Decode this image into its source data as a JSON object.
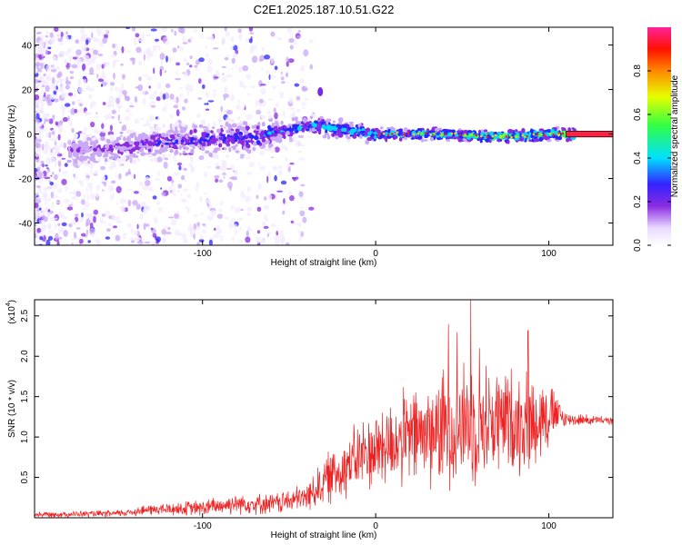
{
  "title": "C2E1.2025.187.10.51.G22",
  "colors": {
    "snr_line": "#ee2222",
    "axis": "#000000",
    "zero_bar": "#ff2244"
  },
  "chart_data": [
    {
      "type": "heatmap",
      "xlabel": "Height of straight line (km)",
      "ylabel": "Frequency (Hz)",
      "xlim": [
        -197,
        137
      ],
      "ylim": [
        -50,
        48
      ],
      "x_ticks": [
        -100,
        0,
        100
      ],
      "y_ticks": [
        -40,
        -20,
        0,
        20,
        40
      ],
      "colorbar": {
        "label": "Normalized spectral amplitude",
        "range": [
          0,
          1
        ],
        "ticks": [
          "0.0",
          "0.2",
          "0.4",
          "0.6",
          "0.8"
        ],
        "colormap": "rainbow (white→purple→blue→cyan→green→yellow→red→magenta)"
      },
      "ridge": [
        {
          "x": -190,
          "f": -8
        },
        {
          "x": -170,
          "f": -7
        },
        {
          "x": -150,
          "f": -6
        },
        {
          "x": -130,
          "f": -4
        },
        {
          "x": -110,
          "f": -3
        },
        {
          "x": -90,
          "f": -2
        },
        {
          "x": -70,
          "f": -1
        },
        {
          "x": -50,
          "f": 2
        },
        {
          "x": -35,
          "f": 4
        },
        {
          "x": -20,
          "f": 2
        },
        {
          "x": 0,
          "f": 0
        },
        {
          "x": 20,
          "f": 0
        },
        {
          "x": 40,
          "f": 0
        },
        {
          "x": 60,
          "f": -1
        },
        {
          "x": 80,
          "f": -1
        },
        {
          "x": 100,
          "f": 0
        },
        {
          "x": 110,
          "f": 0
        },
        {
          "x": 137,
          "f": 0
        }
      ]
    },
    {
      "type": "line",
      "xlabel": "Height of straight line (km)",
      "ylabel": "SNR (10 * v/v)",
      "y_multiplier": "(x10",
      "y_multiplier_exp": "4",
      "xlim": [
        -197,
        137
      ],
      "ylim": [
        0,
        2.7
      ],
      "x_ticks": [
        -100,
        0,
        100
      ],
      "y_ticks": [
        "0.5",
        "1.0",
        "1.5",
        "2.0",
        "2.5"
      ],
      "envelope": [
        {
          "x": -197,
          "mean": 0.04,
          "amp": 0.04
        },
        {
          "x": -150,
          "mean": 0.05,
          "amp": 0.05
        },
        {
          "x": -130,
          "mean": 0.1,
          "amp": 0.08
        },
        {
          "x": -100,
          "mean": 0.12,
          "amp": 0.12
        },
        {
          "x": -80,
          "mean": 0.18,
          "amp": 0.15
        },
        {
          "x": -60,
          "mean": 0.17,
          "amp": 0.15
        },
        {
          "x": -40,
          "mean": 0.25,
          "amp": 0.2
        },
        {
          "x": -30,
          "mean": 0.45,
          "amp": 0.35
        },
        {
          "x": -20,
          "mean": 0.6,
          "amp": 0.45
        },
        {
          "x": -10,
          "mean": 0.75,
          "amp": 0.5
        },
        {
          "x": 0,
          "mean": 0.85,
          "amp": 0.6
        },
        {
          "x": 20,
          "mean": 1.0,
          "amp": 0.7
        },
        {
          "x": 40,
          "mean": 1.1,
          "amp": 0.85
        },
        {
          "x": 55,
          "mean": 1.2,
          "amp": 0.9
        },
        {
          "x": 70,
          "mean": 1.2,
          "amp": 0.8
        },
        {
          "x": 90,
          "mean": 1.2,
          "amp": 0.75
        },
        {
          "x": 100,
          "mean": 1.3,
          "amp": 0.5
        },
        {
          "x": 110,
          "mean": 1.22,
          "amp": 0.1
        },
        {
          "x": 137,
          "mean": 1.2,
          "amp": 0.05
        }
      ],
      "peaks": [
        {
          "x": 42,
          "y": 2.4
        },
        {
          "x": 55,
          "y": 2.7
        },
        {
          "x": 88,
          "y": 2.32
        },
        {
          "x": 47,
          "y": 2.3
        },
        {
          "x": 60,
          "y": 2.1
        }
      ]
    }
  ]
}
